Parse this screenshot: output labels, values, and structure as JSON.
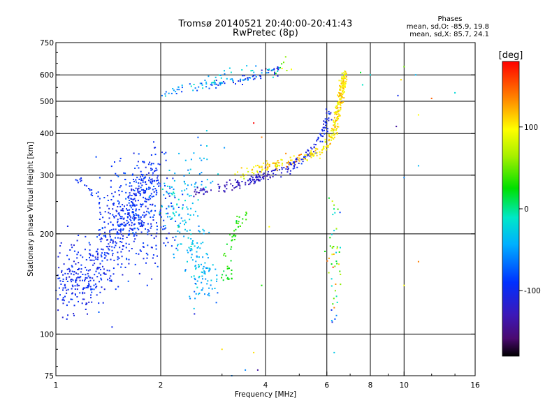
{
  "chart_data": {
    "type": "scatter",
    "title": "Tromsø 20140521 20:40:00-20:41:43",
    "subtitle": "RwPretec (8p)",
    "xlabel": "Frequency [MHz]",
    "ylabel": "Stationary phase Virtual Height [km]",
    "xscale": "log",
    "yscale": "log",
    "xlim": [
      1,
      16
    ],
    "ylim": [
      75,
      750
    ],
    "x_ticks": [
      1,
      2,
      4,
      6,
      8,
      10,
      16
    ],
    "y_ticks": [
      75,
      100,
      200,
      300,
      400,
      500,
      600,
      750
    ],
    "x_tick_labels": [
      "1",
      "2",
      "4",
      "6",
      "8",
      "10",
      "16"
    ],
    "y_tick_labels": [
      "75",
      "100",
      "200",
      "300",
      "400",
      "500",
      "600",
      "750"
    ],
    "grid": true,
    "stats": {
      "heading": "Phases",
      "o_line": "mean, sd,O: -85.9, 19.8",
      "x_line": "mean, sd,X:  85.7, 24.1"
    },
    "colorbar": {
      "label": "[deg]",
      "range": [
        -180,
        180
      ],
      "ticks": [
        100,
        0,
        -100
      ],
      "tick_labels": [
        "100",
        "0",
        "-100"
      ],
      "colormap": "rainbow (black-purple-blue-cyan-green-yellow-red)"
    },
    "clusters": [
      {
        "name": "lower trace",
        "points": [
          [
            1.02,
            130,
            -105
          ],
          [
            1.06,
            140,
            -100
          ],
          [
            1.1,
            155,
            -100
          ],
          [
            1.13,
            165,
            -98
          ],
          [
            1.18,
            135,
            -100
          ],
          [
            1.23,
            140,
            -100
          ],
          [
            1.3,
            150,
            -95
          ],
          [
            1.36,
            165,
            -95
          ],
          [
            1.42,
            175,
            -95
          ],
          [
            1.5,
            190,
            -100
          ],
          [
            1.55,
            210,
            -100
          ],
          [
            1.62,
            230,
            -95
          ],
          [
            1.7,
            250,
            -95
          ],
          [
            1.78,
            270,
            -90
          ],
          [
            1.86,
            290,
            -95
          ],
          [
            1.92,
            320,
            -95
          ]
        ],
        "spread": 0.12,
        "count": 520,
        "phase_sd": 10
      },
      {
        "name": "upper broad",
        "points": [
          [
            1.45,
            200,
            -95
          ],
          [
            1.55,
            220,
            -95
          ],
          [
            1.65,
            240,
            -90
          ],
          [
            1.75,
            230,
            -95
          ],
          [
            1.85,
            210,
            -90
          ],
          [
            1.95,
            230,
            -90
          ]
        ],
        "spread": 0.22,
        "count": 320,
        "phase_sd": 12
      },
      {
        "name": "left spur",
        "points": [
          [
            1.14,
            300,
            -100
          ],
          [
            1.2,
            280,
            -95
          ],
          [
            1.28,
            265,
            -95
          ],
          [
            1.35,
            250,
            -90
          ]
        ],
        "spread": 0.02,
        "count": 20,
        "phase_sd": 6
      },
      {
        "name": "cyan mid",
        "points": [
          [
            2.1,
            270,
            -35
          ],
          [
            2.25,
            230,
            -30
          ],
          [
            2.4,
            200,
            -30
          ],
          [
            2.5,
            170,
            -40
          ],
          [
            2.6,
            150,
            -40
          ],
          [
            2.7,
            140,
            -50
          ],
          [
            2.4,
            300,
            -40
          ],
          [
            2.8,
            350,
            -45
          ]
        ],
        "spread": 0.12,
        "count": 230,
        "phase_sd": 15
      },
      {
        "name": "low O trace",
        "points": [
          [
            2.5,
            270,
            -130
          ],
          [
            3.0,
            275,
            -130
          ],
          [
            3.4,
            285,
            -125
          ],
          [
            3.8,
            295,
            -120
          ],
          [
            4.2,
            305,
            -115
          ],
          [
            4.8,
            320,
            -110
          ],
          [
            5.3,
            345,
            -110
          ],
          [
            5.7,
            380,
            -105
          ],
          [
            5.95,
            420,
            -100
          ],
          [
            6.1,
            470,
            -100
          ]
        ],
        "spread": 0.025,
        "count": 230,
        "phase_sd": 10
      },
      {
        "name": "high O trace",
        "points": [
          [
            2.0,
            520,
            -60
          ],
          [
            2.3,
            545,
            -50
          ],
          [
            2.8,
            560,
            -75
          ],
          [
            3.3,
            580,
            -90
          ],
          [
            3.8,
            595,
            -85
          ],
          [
            4.4,
            620,
            -100
          ]
        ],
        "spread": 0.02,
        "count": 90,
        "phase_sd": 25
      },
      {
        "name": "green blob",
        "points": [
          [
            3.0,
            150,
            20
          ],
          [
            3.2,
            145,
            25
          ],
          [
            3.1,
            170,
            30
          ],
          [
            3.3,
            210,
            30
          ],
          [
            3.5,
            230,
            35
          ]
        ],
        "spread": 0.03,
        "count": 50,
        "phase_sd": 8
      },
      {
        "name": "X trace",
        "points": [
          [
            3.3,
            300,
            100
          ],
          [
            3.8,
            315,
            110
          ],
          [
            4.3,
            325,
            115
          ],
          [
            4.8,
            335,
            120
          ],
          [
            5.4,
            345,
            110
          ],
          [
            5.9,
            360,
            105
          ],
          [
            6.2,
            390,
            100
          ],
          [
            6.4,
            440,
            105
          ],
          [
            6.55,
            510,
            100
          ],
          [
            6.65,
            560,
            95
          ],
          [
            6.75,
            600,
            110
          ]
        ],
        "spread": 0.025,
        "count": 230,
        "phase_sd": 15
      },
      {
        "name": "ridge",
        "points": [
          [
            6.8,
            620,
            100
          ],
          [
            6.7,
            560,
            110
          ],
          [
            6.6,
            520,
            110
          ],
          [
            6.5,
            480,
            120
          ],
          [
            6.4,
            440,
            105
          ],
          [
            6.25,
            400,
            110
          ]
        ],
        "spread": 0.02,
        "count": 90,
        "phase_sd": 15
      },
      {
        "name": "top scatter",
        "points": [
          [
            2.6,
            560,
            -30
          ],
          [
            3.2,
            600,
            -40
          ],
          [
            4.3,
            630,
            -40
          ],
          [
            4.7,
            640,
            110
          ]
        ],
        "spread": 0.04,
        "count": 45,
        "phase_sd": 15
      },
      {
        "name": "vertical column",
        "points": [
          [
            6.3,
            250,
            -20
          ],
          [
            6.3,
            180,
            30
          ],
          [
            6.3,
            140,
            110
          ],
          [
            6.3,
            110,
            -100
          ]
        ],
        "spread": 0.05,
        "count": 50,
        "phase_sd": 50
      }
    ],
    "sparse": [
      [
        9.6,
        520,
        -100
      ],
      [
        9.8,
        580,
        110
      ],
      [
        10.0,
        635,
        50
      ],
      [
        12.0,
        510,
        150
      ],
      [
        14.0,
        530,
        -20
      ],
      [
        10.8,
        600,
        -40
      ],
      [
        9.5,
        420,
        -140
      ],
      [
        11.0,
        455,
        100
      ],
      [
        11.0,
        320,
        -40
      ],
      [
        10.0,
        295,
        -60
      ],
      [
        11.0,
        165,
        140
      ],
      [
        10.0,
        140,
        100
      ],
      [
        6.3,
        120,
        140
      ],
      [
        6.3,
        88,
        -30
      ],
      [
        3.0,
        90,
        110
      ],
      [
        3.7,
        88,
        110
      ],
      [
        3.8,
        78,
        -140
      ],
      [
        3.5,
        78,
        -60
      ],
      [
        3.2,
        75,
        -60
      ],
      [
        2.5,
        115,
        -110
      ],
      [
        1.45,
        105,
        -100
      ],
      [
        8.0,
        600,
        -20
      ],
      [
        7.5,
        610,
        20
      ],
      [
        7.6,
        560,
        -10
      ],
      [
        3.7,
        430,
        180
      ],
      [
        3.9,
        390,
        140
      ],
      [
        3.3,
        215,
        40
      ],
      [
        4.1,
        210,
        100
      ],
      [
        3.9,
        140,
        30
      ]
    ]
  }
}
